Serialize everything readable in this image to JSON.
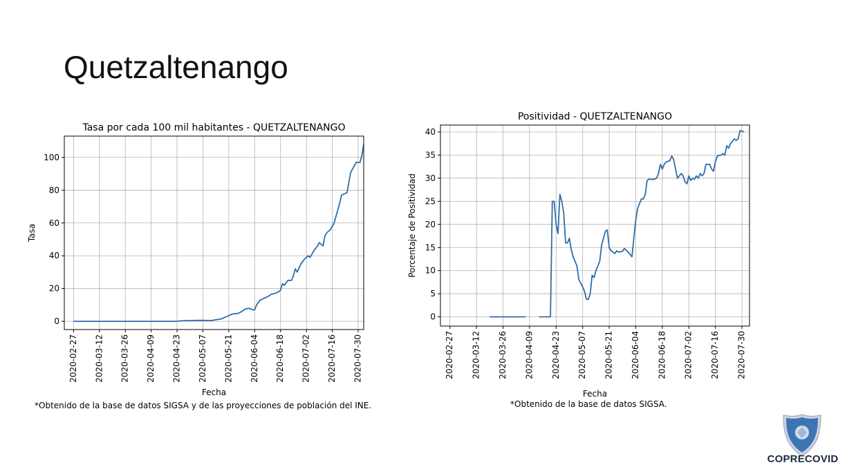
{
  "slide": {
    "title": "Quetzaltenango",
    "logo_text": "COPRECOVID"
  },
  "chart_data": [
    {
      "type": "line",
      "title": "Tasa por cada 100 mil habitantes - QUETZALTENANGO",
      "xlabel": "Fecha",
      "ylabel": "Tasa",
      "caption": "*Obtenido de la base de datos SIGSA y de las proyecciones de población del INE.",
      "grid": true,
      "color": "#2f6ca8",
      "xlim": [
        "2020-02-22",
        "2020-08-02"
      ],
      "ylim": [
        -5,
        113
      ],
      "x_ticks": [
        "2020-02-27",
        "2020-03-12",
        "2020-03-26",
        "2020-04-09",
        "2020-04-23",
        "2020-05-07",
        "2020-05-21",
        "2020-06-04",
        "2020-06-18",
        "2020-07-02",
        "2020-07-16",
        "2020-07-30"
      ],
      "y_ticks": [
        0,
        20,
        40,
        60,
        80,
        100
      ],
      "series": [
        {
          "points": [
            [
              "2020-02-27",
              0
            ],
            [
              "2020-04-23",
              0
            ],
            [
              "2020-04-25",
              0.3
            ],
            [
              "2020-05-01",
              0.5
            ],
            [
              "2020-05-07",
              0.6
            ],
            [
              "2020-05-10",
              0.5
            ],
            [
              "2020-05-12",
              0.5
            ],
            [
              "2020-05-14",
              1
            ],
            [
              "2020-05-17",
              1.5
            ],
            [
              "2020-05-19",
              2.5
            ],
            [
              "2020-05-21",
              3.5
            ],
            [
              "2020-05-23",
              4.5
            ],
            [
              "2020-05-26",
              4.8
            ],
            [
              "2020-05-28",
              6
            ],
            [
              "2020-05-30",
              7.5
            ],
            [
              "2020-06-01",
              8
            ],
            [
              "2020-06-03",
              7
            ],
            [
              "2020-06-04",
              7
            ],
            [
              "2020-06-05",
              10
            ],
            [
              "2020-06-07",
              13
            ],
            [
              "2020-06-09",
              14
            ],
            [
              "2020-06-11",
              15
            ],
            [
              "2020-06-13",
              16.5
            ],
            [
              "2020-06-15",
              17
            ],
            [
              "2020-06-17",
              18
            ],
            [
              "2020-06-18",
              19
            ],
            [
              "2020-06-19",
              23
            ],
            [
              "2020-06-20",
              22
            ],
            [
              "2020-06-22",
              25
            ],
            [
              "2020-06-24",
              25
            ],
            [
              "2020-06-25",
              28
            ],
            [
              "2020-06-26",
              32
            ],
            [
              "2020-06-27",
              30
            ],
            [
              "2020-06-29",
              35
            ],
            [
              "2020-07-01",
              38
            ],
            [
              "2020-07-03",
              40
            ],
            [
              "2020-07-04",
              39
            ],
            [
              "2020-07-06",
              43
            ],
            [
              "2020-07-08",
              46
            ],
            [
              "2020-07-09",
              48
            ],
            [
              "2020-07-10",
              47
            ],
            [
              "2020-07-11",
              46
            ],
            [
              "2020-07-12",
              52
            ],
            [
              "2020-07-13",
              54
            ],
            [
              "2020-07-15",
              56
            ],
            [
              "2020-07-17",
              60
            ],
            [
              "2020-07-19",
              68
            ],
            [
              "2020-07-20",
              72
            ],
            [
              "2020-07-21",
              77
            ],
            [
              "2020-07-23",
              78
            ],
            [
              "2020-07-24",
              78.5
            ],
            [
              "2020-07-25",
              85
            ],
            [
              "2020-07-26",
              91
            ],
            [
              "2020-07-27",
              93
            ],
            [
              "2020-07-28",
              95
            ],
            [
              "2020-07-29",
              97
            ],
            [
              "2020-07-30",
              97
            ],
            [
              "2020-07-31",
              97
            ],
            [
              "2020-08-01",
              101
            ],
            [
              "2020-08-02",
              108
            ]
          ]
        }
      ]
    },
    {
      "type": "line",
      "title": "Positividad - QUETZALTENANGO",
      "xlabel": "Fecha",
      "ylabel": "Porcentaje de Positividad",
      "caption": "*Obtenido de la base de datos SIGSA.",
      "grid": true,
      "color": "#2f6ca8",
      "xlim": [
        "2020-02-22",
        "2020-08-03"
      ],
      "ylim": [
        -2,
        41.5
      ],
      "x_ticks": [
        "2020-02-27",
        "2020-03-12",
        "2020-03-26",
        "2020-04-09",
        "2020-04-23",
        "2020-05-07",
        "2020-05-21",
        "2020-06-04",
        "2020-06-18",
        "2020-07-02",
        "2020-07-16",
        "2020-07-30"
      ],
      "y_ticks": [
        0,
        5,
        10,
        15,
        20,
        25,
        30,
        35,
        40
      ],
      "series": [
        {
          "segments": [
            [
              [
                "2020-03-19",
                0
              ],
              [
                "2020-04-07",
                0
              ]
            ],
            [
              [
                "2020-04-14",
                0
              ],
              [
                "2020-04-20",
                0
              ],
              [
                "2020-04-21",
                25
              ],
              [
                "2020-04-22",
                25
              ],
              [
                "2020-04-23",
                20
              ],
              [
                "2020-04-24",
                18
              ],
              [
                "2020-04-25",
                26.5
              ],
              [
                "2020-04-26",
                25
              ],
              [
                "2020-04-27",
                22.5
              ],
              [
                "2020-04-28",
                16
              ],
              [
                "2020-04-29",
                16
              ],
              [
                "2020-04-30",
                17
              ],
              [
                "2020-05-01",
                14.5
              ],
              [
                "2020-05-02",
                13
              ],
              [
                "2020-05-04",
                11
              ],
              [
                "2020-05-05",
                8
              ],
              [
                "2020-05-07",
                6.5
              ],
              [
                "2020-05-08",
                5.5
              ],
              [
                "2020-05-09",
                3.8
              ],
              [
                "2020-05-10",
                3.8
              ],
              [
                "2020-05-11",
                5
              ],
              [
                "2020-05-12",
                9
              ],
              [
                "2020-05-13",
                8.5
              ],
              [
                "2020-05-14",
                10
              ],
              [
                "2020-05-16",
                12
              ],
              [
                "2020-05-17",
                15.5
              ],
              [
                "2020-05-18",
                17
              ],
              [
                "2020-05-19",
                18.5
              ],
              [
                "2020-05-20",
                18.8
              ],
              [
                "2020-05-21",
                15
              ],
              [
                "2020-05-22",
                14.3
              ],
              [
                "2020-05-24",
                13.7
              ],
              [
                "2020-05-25",
                14.3
              ],
              [
                "2020-05-26",
                14
              ],
              [
                "2020-05-28",
                14.2
              ],
              [
                "2020-05-29",
                14.8
              ],
              [
                "2020-05-31",
                14
              ],
              [
                "2020-06-02",
                13
              ],
              [
                "2020-06-03",
                17
              ],
              [
                "2020-06-04",
                21
              ],
              [
                "2020-06-05",
                23.5
              ],
              [
                "2020-06-06",
                24.5
              ],
              [
                "2020-06-07",
                25.5
              ],
              [
                "2020-06-08",
                25.5
              ],
              [
                "2020-06-09",
                26.5
              ],
              [
                "2020-06-10",
                29.5
              ],
              [
                "2020-06-11",
                29.8
              ],
              [
                "2020-06-13",
                29.7
              ],
              [
                "2020-06-15",
                30
              ],
              [
                "2020-06-16",
                31
              ],
              [
                "2020-06-17",
                33
              ],
              [
                "2020-06-18",
                32
              ],
              [
                "2020-06-19",
                33
              ],
              [
                "2020-06-20",
                33.5
              ],
              [
                "2020-06-22",
                33.8
              ],
              [
                "2020-06-23",
                34.8
              ],
              [
                "2020-06-24",
                34
              ],
              [
                "2020-06-25",
                32
              ],
              [
                "2020-06-26",
                30
              ],
              [
                "2020-06-27",
                30.5
              ],
              [
                "2020-06-28",
                31
              ],
              [
                "2020-06-29",
                30.5
              ],
              [
                "2020-06-30",
                29.2
              ],
              [
                "2020-07-01",
                28.8
              ],
              [
                "2020-07-02",
                30.5
              ],
              [
                "2020-07-03",
                29.5
              ],
              [
                "2020-07-04",
                30
              ],
              [
                "2020-07-05",
                29.8
              ],
              [
                "2020-07-06",
                30.5
              ],
              [
                "2020-07-07",
                30
              ],
              [
                "2020-07-08",
                31
              ],
              [
                "2020-07-09",
                30.5
              ],
              [
                "2020-07-10",
                31
              ],
              [
                "2020-07-11",
                33
              ],
              [
                "2020-07-13",
                33
              ],
              [
                "2020-07-14",
                32
              ],
              [
                "2020-07-15",
                31.5
              ],
              [
                "2020-07-16",
                33.5
              ],
              [
                "2020-07-17",
                34.8
              ],
              [
                "2020-07-19",
                35
              ],
              [
                "2020-07-20",
                35.3
              ],
              [
                "2020-07-21",
                35
              ],
              [
                "2020-07-22",
                37
              ],
              [
                "2020-07-23",
                36.5
              ],
              [
                "2020-07-24",
                37.5
              ],
              [
                "2020-07-25",
                38
              ],
              [
                "2020-07-26",
                38.5
              ],
              [
                "2020-07-27",
                38.2
              ],
              [
                "2020-07-28",
                38.5
              ],
              [
                "2020-07-29",
                40.3
              ],
              [
                "2020-07-30",
                40.2
              ],
              [
                "2020-07-31",
                40
              ]
            ]
          ]
        }
      ]
    }
  ]
}
